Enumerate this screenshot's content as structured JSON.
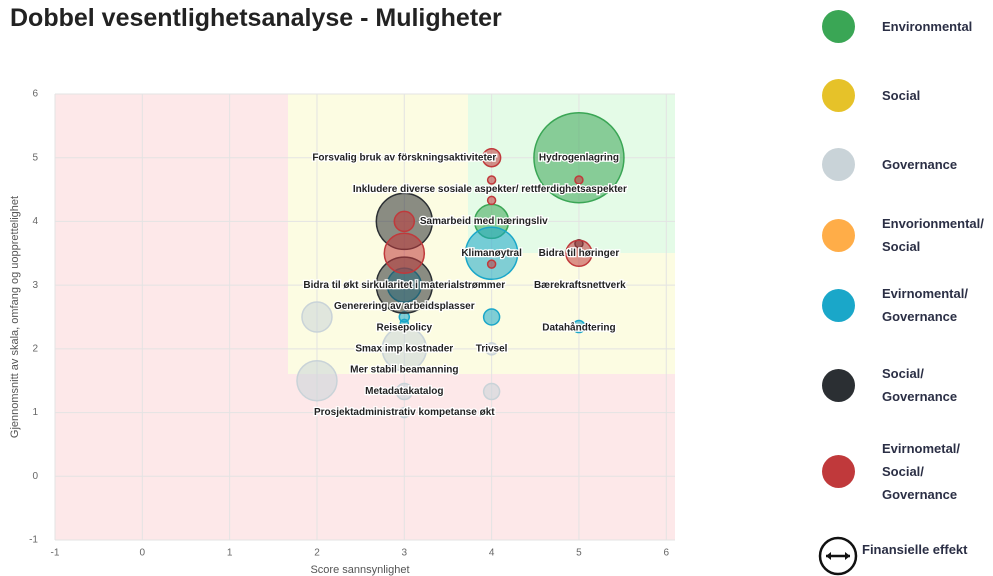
{
  "chart_data": {
    "type": "bubble",
    "title": "Dobbel vesentlighetsanalyse - Muligheter",
    "x_label": "Score sannsynlighet",
    "y_label": "Gjennomsnitt av skala, omfang og uopprettelighet",
    "xlim": [
      -1,
      6.1
    ],
    "xticks": [
      -1,
      0,
      1,
      2,
      3,
      4,
      5,
      6
    ],
    "ylim": [
      -1,
      6
    ],
    "yticks": [
      -1,
      0,
      1,
      2,
      3,
      4,
      5,
      6
    ],
    "grid": true,
    "series": [
      {
        "name": "Environmental",
        "color": "#3aa655",
        "x": [
          5,
          4
        ],
        "y": [
          5,
          4
        ],
        "size": [
          45,
          17
        ]
      },
      {
        "name": "Social",
        "color": "#e6c229",
        "x": [],
        "y": [],
        "size": []
      },
      {
        "name": "Governance",
        "color": "#c9d3d8",
        "x": [
          2,
          3,
          2,
          3,
          4,
          4,
          3
        ],
        "y": [
          2.5,
          2,
          1.5,
          1.33,
          1.33,
          2,
          1
        ],
        "size": [
          15,
          22,
          20,
          8,
          8,
          6,
          5
        ]
      },
      {
        "name": "Envorionmental/ Social",
        "color": "#ffad48",
        "x": [],
        "y": [],
        "size": []
      },
      {
        "name": "Evirnomental/ Governance",
        "color": "#1aa7c9",
        "x": [
          4,
          3,
          3,
          3,
          4,
          5
        ],
        "y": [
          3.5,
          3,
          2.5,
          2.4,
          2.5,
          2.35
        ],
        "size": [
          26,
          17,
          5,
          4,
          8,
          6
        ]
      },
      {
        "name": "Social/ Governance",
        "color": "#2b2f33",
        "x": [
          3,
          3,
          5
        ],
        "y": [
          4,
          3,
          3.65
        ],
        "size": [
          28,
          28,
          4
        ]
      },
      {
        "name": "Evirnometal/ Social/ Governance",
        "color": "#c0393b",
        "x": [
          4,
          4,
          4,
          5,
          3,
          3,
          5,
          4
        ],
        "y": [
          5,
          4.65,
          4.33,
          4.65,
          4,
          3.5,
          3.5,
          3.33
        ],
        "size": [
          9,
          4,
          4,
          4,
          10,
          20,
          13,
          4
        ]
      }
    ],
    "annotations": [
      {
        "text": "Forsvalig bruk av förskningsaktiviteter",
        "x": 3.0,
        "y": 5
      },
      {
        "text": "Hydrogenlagring",
        "x": 5,
        "y": 5
      },
      {
        "text": "Inkludere diverse sosiale aspekter/ rettferdighetsaspekter",
        "x": 3.98,
        "y": 4.5
      },
      {
        "text": "Samarbeid med næringsliv",
        "x": 3.91,
        "y": 4
      },
      {
        "text": "Klimanøytral",
        "x": 4,
        "y": 3.5
      },
      {
        "text": "Bidra til høringer",
        "x": 5,
        "y": 3.5
      },
      {
        "text": "Bidra til økt sirkularitet i materialstrømmer",
        "x": 3.0,
        "y": 3
      },
      {
        "text": "Bærekraftsnettverk",
        "x": 5.01,
        "y": 3
      },
      {
        "text": "Generering av arbeidsplasser",
        "x": 3.0,
        "y": 2.67
      },
      {
        "text": "Reisepolicy",
        "x": 3.0,
        "y": 2.33
      },
      {
        "text": "Datahåndtering",
        "x": 5,
        "y": 2.33
      },
      {
        "text": "Smax imp kostnader",
        "x": 3,
        "y": 2
      },
      {
        "text": "Trivsel",
        "x": 4,
        "y": 2
      },
      {
        "text": "Mer stabil beamanning",
        "x": 3,
        "y": 1.67
      },
      {
        "text": "Metadatakatalog",
        "x": 3,
        "y": 1.33
      },
      {
        "text": "Prosjektadministrativ kompetanse økt",
        "x": 3,
        "y": 1
      }
    ],
    "legend_extra": "Finansielle effekt"
  }
}
